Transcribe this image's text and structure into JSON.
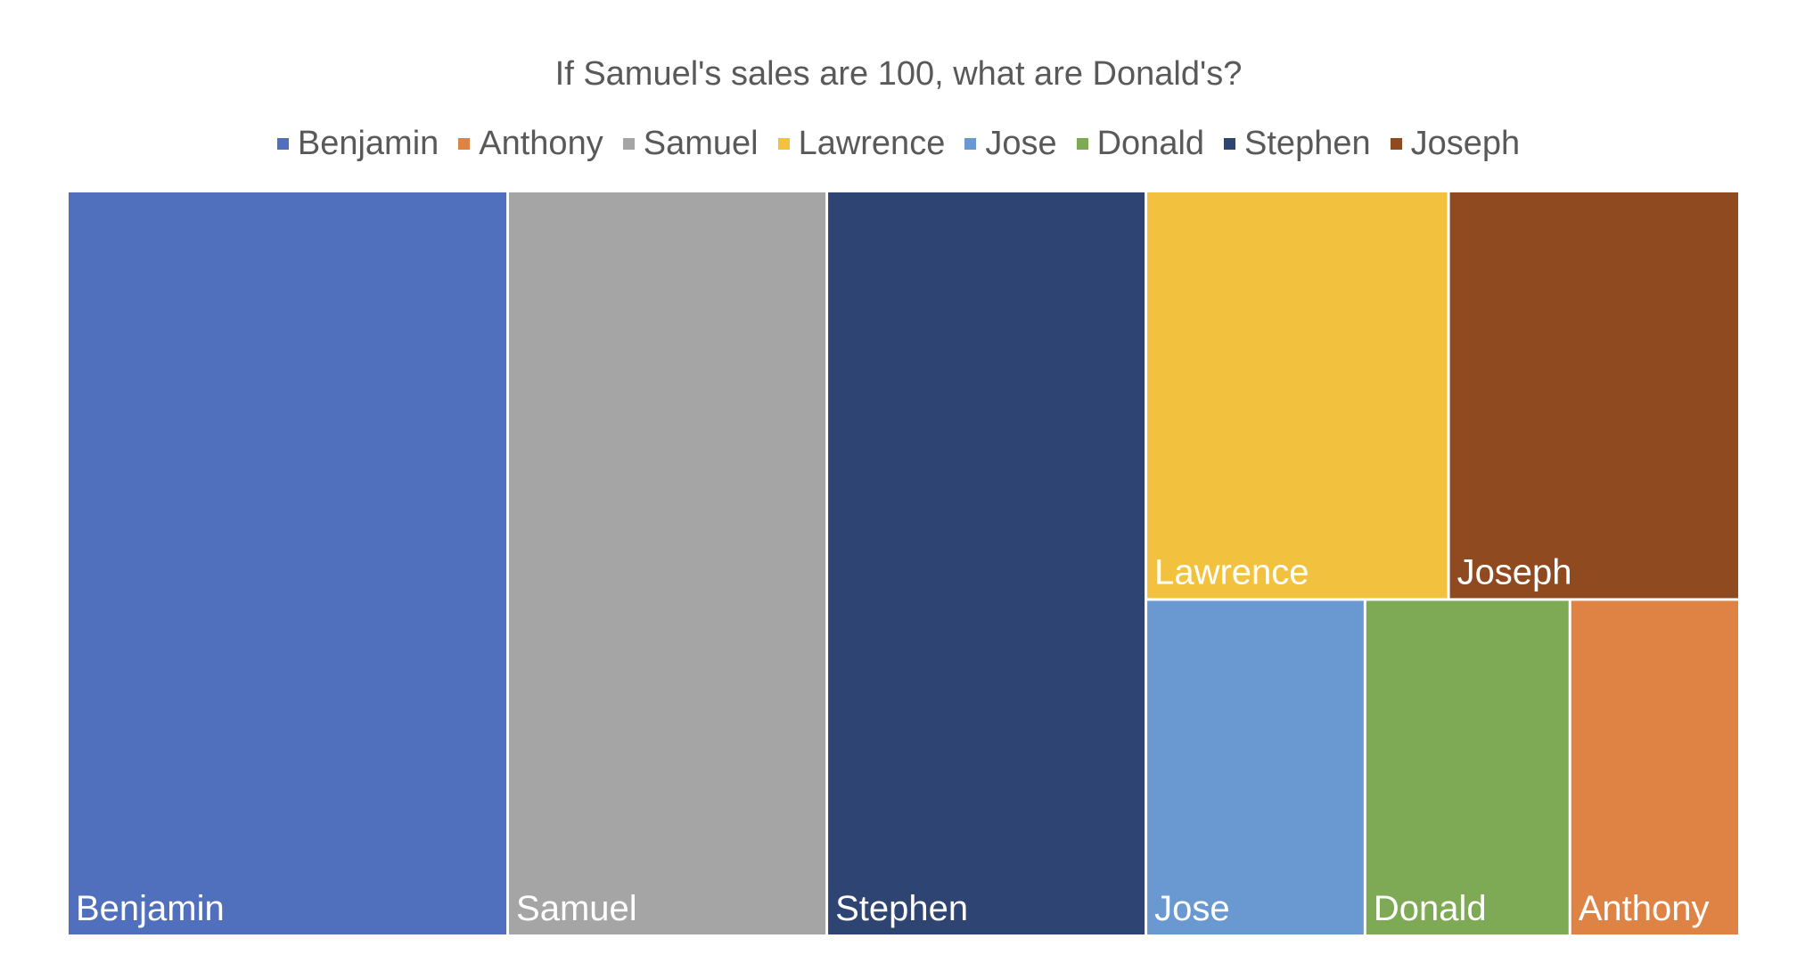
{
  "chart_data": {
    "type": "treemap",
    "title": "If Samuel's sales are 100, what are Donald's?",
    "legend_position": "top",
    "data_labels": "bottom-left, category name",
    "items": [
      {
        "name": "Benjamin",
        "value": 138,
        "color": "#5070BE"
      },
      {
        "name": "Samuel",
        "value": 100,
        "color": "#A5A5A5"
      },
      {
        "name": "Stephen",
        "value": 100,
        "color": "#2E4473"
      },
      {
        "name": "Lawrence",
        "value": 52,
        "color": "#F2C23F"
      },
      {
        "name": "Joseph",
        "value": 50,
        "color": "#904A20"
      },
      {
        "name": "Jose",
        "value": 31,
        "color": "#6A98D0"
      },
      {
        "name": "Donald",
        "value": 29,
        "color": "#7EAA55"
      },
      {
        "name": "Anthony",
        "value": 24,
        "color": "#DF8344"
      }
    ],
    "legend_order": [
      "Benjamin",
      "Anthony",
      "Samuel",
      "Lawrence",
      "Jose",
      "Donald",
      "Stephen",
      "Joseph"
    ]
  }
}
